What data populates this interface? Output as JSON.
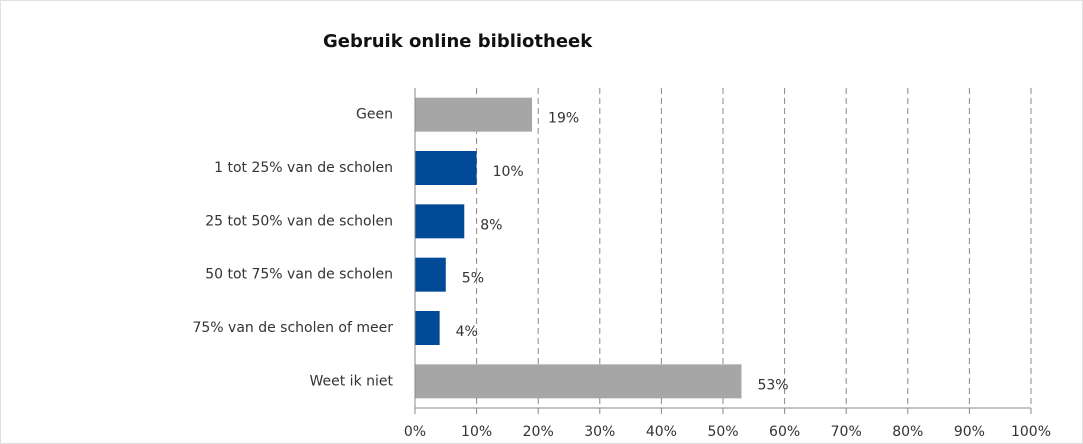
{
  "chart_data": {
    "type": "bar",
    "orientation": "horizontal",
    "title": "Gebruik online bibliotheek",
    "categories": [
      "Geen",
      "1 tot 25% van de scholen",
      "25 tot 50% van de scholen",
      "50 tot 75% van de scholen",
      "75% van de scholen of meer",
      "Weet ik niet"
    ],
    "values": [
      19,
      10,
      8,
      5,
      4,
      53
    ],
    "value_labels": [
      "19%",
      "10%",
      "8%",
      "5%",
      "4%",
      "53%"
    ],
    "colors": [
      "#a6a6a6",
      "#004a97",
      "#004a97",
      "#004a97",
      "#004a97",
      "#a6a6a6"
    ],
    "xlim": [
      0,
      100
    ],
    "xticks": [
      {
        "value": 0,
        "label": "0%"
      },
      {
        "value": 10,
        "label": "10%"
      },
      {
        "value": 20,
        "label": "20%"
      },
      {
        "value": 30,
        "label": "30%"
      },
      {
        "value": 40,
        "label": "40%"
      },
      {
        "value": 50,
        "label": "50%"
      },
      {
        "value": 60,
        "label": "60%"
      },
      {
        "value": 70,
        "label": "70%"
      },
      {
        "value": 80,
        "label": "80%"
      },
      {
        "value": 90,
        "label": "90%"
      },
      {
        "value": 100,
        "label": "100%"
      }
    ],
    "grid": true
  }
}
